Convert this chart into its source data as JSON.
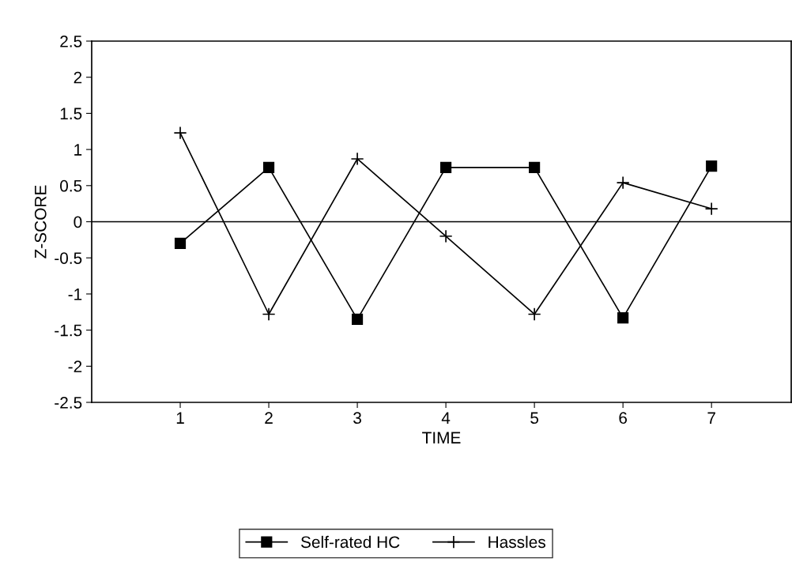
{
  "chart_data": {
    "type": "line",
    "xlabel": "TIME",
    "ylabel": "Z-SCORE",
    "x": [
      1,
      2,
      3,
      4,
      5,
      6,
      7
    ],
    "series": [
      {
        "name": "Self-rated HC",
        "color": "#000000",
        "marker": "square",
        "values": [
          -0.3,
          0.75,
          -1.35,
          0.75,
          0.75,
          -1.33,
          0.77
        ]
      },
      {
        "name": "Hassles",
        "color": "#000000",
        "marker": "cross",
        "values": [
          1.23,
          -1.28,
          0.87,
          -0.2,
          -1.28,
          0.54,
          0.18
        ]
      }
    ],
    "xlim": [
      0,
      7.9
    ],
    "xticks": [
      1,
      2,
      3,
      4,
      5,
      6,
      7
    ],
    "ylim": [
      -2.5,
      2.5
    ],
    "yticks": [
      -2.5,
      -2,
      -1.5,
      -1,
      -0.5,
      0,
      0.5,
      1,
      1.5,
      2,
      2.5
    ],
    "ref_lines": [
      {
        "axis": "y",
        "value": 0,
        "color": "#000000"
      }
    ],
    "legend": "bottom",
    "grid": false,
    "line_style": "solid"
  }
}
